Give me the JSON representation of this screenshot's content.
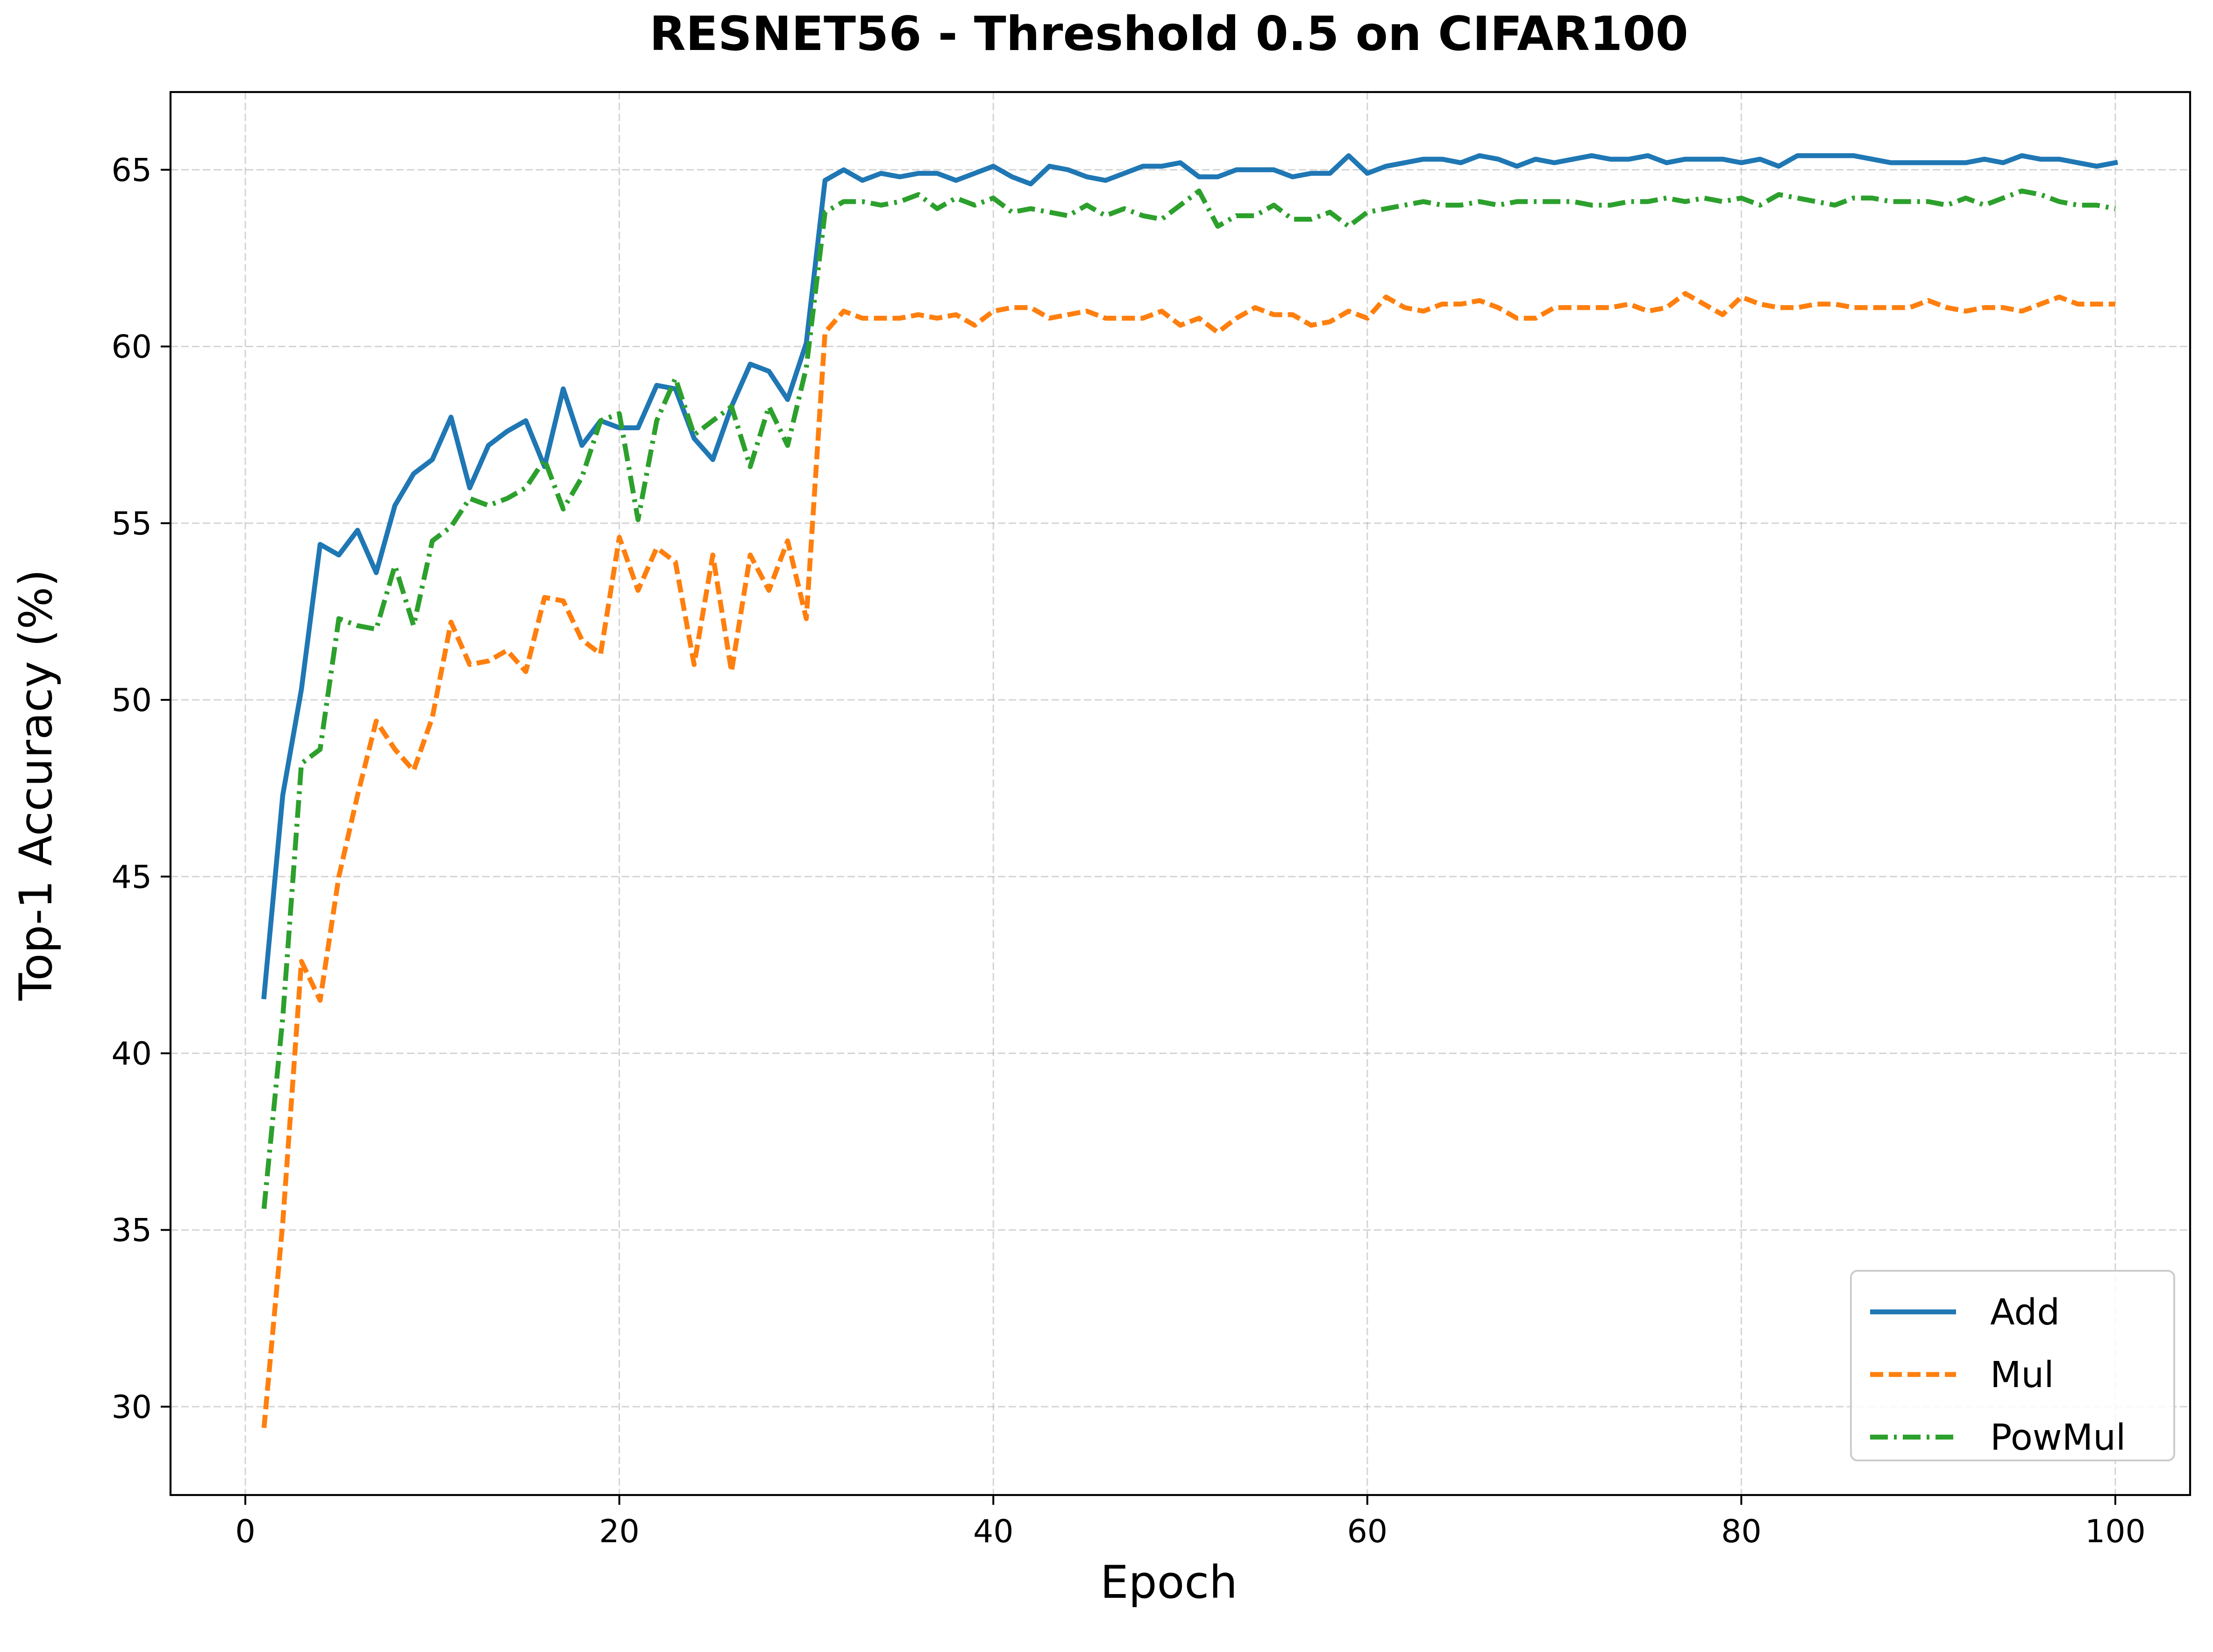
{
  "chart_data": {
    "type": "line",
    "title": "RESNET56 - Threshold 0.5 on CIFAR100",
    "xlabel": "Epoch",
    "ylabel": "Top-1 Accuracy (%)",
    "xlim": [
      -4,
      104
    ],
    "ylim": [
      27.5,
      67.2
    ],
    "xticks": [
      0,
      20,
      40,
      60,
      80,
      100
    ],
    "yticks": [
      30,
      35,
      40,
      45,
      50,
      55,
      60,
      65
    ],
    "grid": true,
    "legend_position": "lower-right",
    "x": [
      1,
      2,
      3,
      4,
      5,
      6,
      7,
      8,
      9,
      10,
      11,
      12,
      13,
      14,
      15,
      16,
      17,
      18,
      19,
      20,
      21,
      22,
      23,
      24,
      25,
      26,
      27,
      28,
      29,
      30,
      31,
      32,
      33,
      34,
      35,
      36,
      37,
      38,
      39,
      40,
      41,
      42,
      43,
      44,
      45,
      46,
      47,
      48,
      49,
      50,
      51,
      52,
      53,
      54,
      55,
      56,
      57,
      58,
      59,
      60,
      61,
      62,
      63,
      64,
      65,
      66,
      67,
      68,
      69,
      70,
      71,
      72,
      73,
      74,
      75,
      76,
      77,
      78,
      79,
      80,
      81,
      82,
      83,
      84,
      85,
      86,
      87,
      88,
      89,
      90,
      91,
      92,
      93,
      94,
      95,
      96,
      97,
      98,
      99,
      100
    ],
    "series": [
      {
        "name": "Add",
        "color": "#1f77b4",
        "style": "solid",
        "values": [
          41.6,
          47.3,
          50.3,
          54.4,
          54.1,
          54.8,
          53.6,
          55.5,
          56.4,
          56.8,
          58.0,
          56.0,
          57.2,
          57.6,
          57.9,
          56.6,
          58.8,
          57.2,
          57.9,
          57.7,
          57.7,
          58.9,
          58.8,
          57.4,
          56.8,
          58.3,
          59.5,
          59.3,
          58.5,
          60.1,
          64.7,
          65.0,
          64.7,
          64.9,
          64.8,
          64.9,
          64.9,
          64.7,
          64.9,
          65.1,
          64.8,
          64.6,
          65.1,
          65.0,
          64.8,
          64.7,
          64.9,
          65.1,
          65.1,
          65.2,
          64.8,
          64.8,
          65.0,
          65.0,
          65.0,
          64.8,
          64.9,
          64.9,
          65.4,
          64.9,
          65.1,
          65.2,
          65.3,
          65.3,
          65.2,
          65.4,
          65.3,
          65.1,
          65.3,
          65.2,
          65.3,
          65.4,
          65.3,
          65.3,
          65.4,
          65.2,
          65.3,
          65.3,
          65.3,
          65.2,
          65.3,
          65.1,
          65.4,
          65.4,
          65.4,
          65.4,
          65.3,
          65.2,
          65.2,
          65.2,
          65.2,
          65.2,
          65.3,
          65.2,
          65.4,
          65.3,
          65.3,
          65.2,
          65.1,
          65.2
        ]
      },
      {
        "name": "Mul",
        "color": "#ff7f0e",
        "style": "dashed",
        "values": [
          29.4,
          35.2,
          42.6,
          41.5,
          45.0,
          47.3,
          49.4,
          48.6,
          48.0,
          49.5,
          52.2,
          51.0,
          51.1,
          51.4,
          50.8,
          52.9,
          52.8,
          51.7,
          51.3,
          54.6,
          53.1,
          54.3,
          53.9,
          51.0,
          54.1,
          50.8,
          54.1,
          53.1,
          54.5,
          52.3,
          60.4,
          61.0,
          60.8,
          60.8,
          60.8,
          60.9,
          60.8,
          60.9,
          60.6,
          61.0,
          61.1,
          61.1,
          60.8,
          60.9,
          61.0,
          60.8,
          60.8,
          60.8,
          61.0,
          60.6,
          60.8,
          60.4,
          60.8,
          61.1,
          60.9,
          60.9,
          60.6,
          60.7,
          61.0,
          60.8,
          61.4,
          61.1,
          61.0,
          61.2,
          61.2,
          61.3,
          61.1,
          60.8,
          60.8,
          61.1,
          61.1,
          61.1,
          61.1,
          61.2,
          61.0,
          61.1,
          61.5,
          61.2,
          60.9,
          61.4,
          61.2,
          61.1,
          61.1,
          61.2,
          61.2,
          61.1,
          61.1,
          61.1,
          61.1,
          61.3,
          61.1,
          61.0,
          61.1,
          61.1,
          61.0,
          61.2,
          61.4,
          61.2,
          61.2,
          61.2
        ]
      },
      {
        "name": "PowMul",
        "color": "#2ca02c",
        "style": "dashdot",
        "values": [
          35.6,
          41.0,
          48.2,
          48.6,
          52.3,
          52.1,
          52.0,
          53.8,
          52.1,
          54.5,
          54.9,
          55.7,
          55.5,
          55.7,
          56.0,
          56.8,
          55.4,
          56.3,
          57.9,
          58.1,
          55.1,
          57.9,
          59.1,
          57.5,
          57.9,
          58.3,
          56.6,
          58.3,
          57.2,
          59.4,
          63.8,
          64.1,
          64.1,
          64.0,
          64.1,
          64.3,
          63.9,
          64.2,
          64.0,
          64.2,
          63.8,
          63.9,
          63.8,
          63.7,
          64.0,
          63.7,
          63.9,
          63.7,
          63.6,
          64.0,
          64.4,
          63.4,
          63.7,
          63.7,
          64.0,
          63.6,
          63.6,
          63.8,
          63.4,
          63.8,
          63.9,
          64.0,
          64.1,
          64.0,
          64.0,
          64.1,
          64.0,
          64.1,
          64.1,
          64.1,
          64.1,
          64.0,
          64.0,
          64.1,
          64.1,
          64.2,
          64.1,
          64.2,
          64.1,
          64.2,
          64.0,
          64.3,
          64.2,
          64.1,
          64.0,
          64.2,
          64.2,
          64.1,
          64.1,
          64.1,
          64.0,
          64.2,
          64.0,
          64.2,
          64.4,
          64.3,
          64.1,
          64.0,
          64.0,
          63.9
        ]
      }
    ]
  }
}
